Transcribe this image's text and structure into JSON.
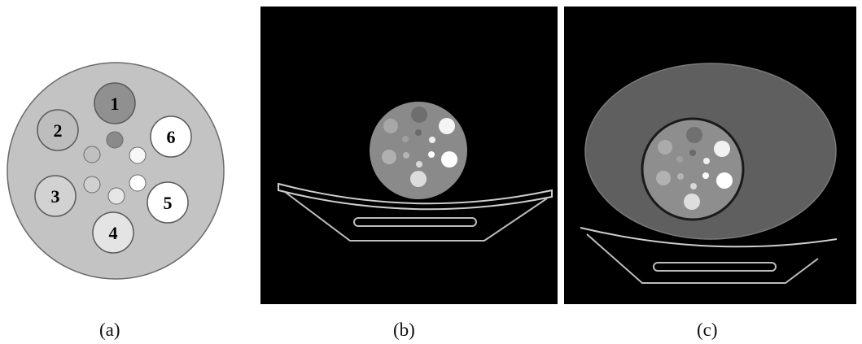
{
  "panels": [
    {
      "caption": "(a)"
    },
    {
      "caption": "(b)"
    },
    {
      "caption": "(c)"
    }
  ],
  "inserts": [
    "1",
    "2",
    "3",
    "4",
    "5",
    "6"
  ],
  "colors": {
    "background": "#ffffff",
    "phantom_body": "#c3c3c3",
    "ct_background": "#000000",
    "ct_phantom": "#8a8a8a",
    "ct_ellipse": "#5f5f5f"
  }
}
